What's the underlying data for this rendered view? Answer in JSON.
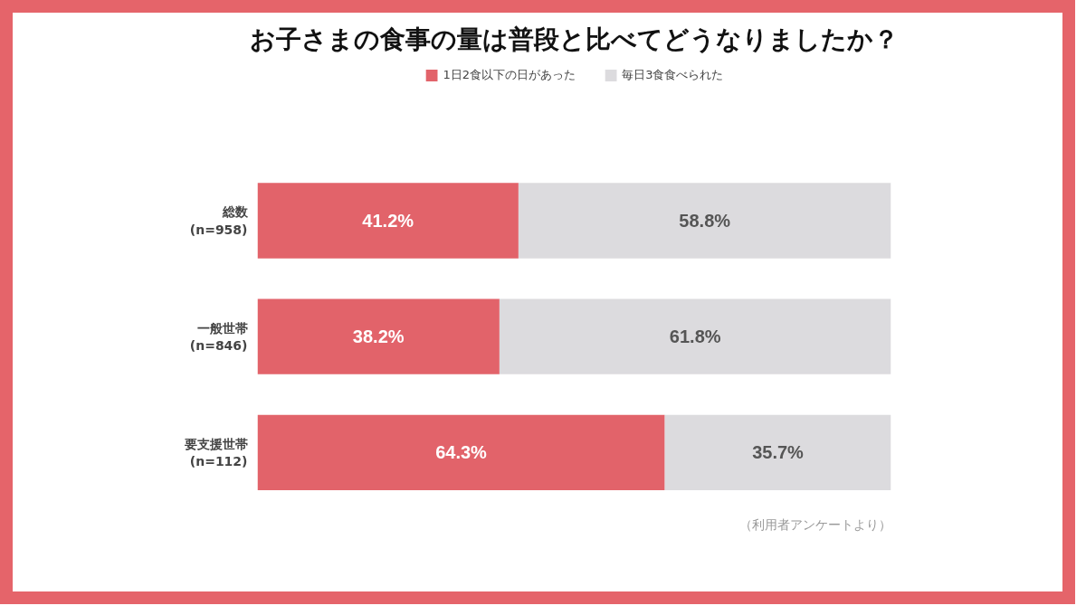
{
  "chart_data": {
    "type": "bar",
    "orientation": "horizontal",
    "stacked": true,
    "title": "お子さまの食事の量は普段と比べてどうなりましたか？",
    "categories": [
      "総数\n(n=958)",
      "一般世帯\n(n=846)",
      "要支援世帯\n(n=112)"
    ],
    "series": [
      {
        "name": "1日2食以下の日があった",
        "color": "#e2636a",
        "values": [
          41.2,
          38.2,
          64.3
        ],
        "value_labels": [
          "41.2%",
          "38.2%",
          "64.3%"
        ]
      },
      {
        "name": "毎日3食食べられた",
        "color": "#dcdbde",
        "values": [
          58.8,
          61.8,
          35.7
        ],
        "value_labels": [
          "58.8%",
          "61.8%",
          "35.7%"
        ]
      }
    ],
    "xlim": [
      0,
      100
    ],
    "tick_labels": "y",
    "grid": false,
    "legend": "top",
    "annotations": [
      "（利用者アンケートより）"
    ]
  }
}
